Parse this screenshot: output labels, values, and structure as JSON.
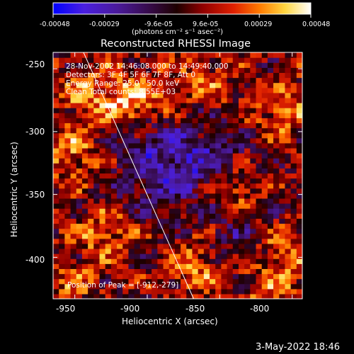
{
  "colorbar": {
    "ticks": [
      "-0.00048",
      "-0.00029",
      "-9.6e-05",
      "9.6e-05",
      "0.00029",
      "0.00048"
    ],
    "unit_label": "(photons cm⁻² s⁻¹ asec⁻²)"
  },
  "title": "Reconstructed RHESSI Image",
  "annotations": {
    "time_range": "28-Nov-2002 14:46:08.000 to 14:49:40.000",
    "detectors": "Detectors: 3F 4F 5F 6F 7F 8F, Att 0",
    "energy_range": "Energy Range: 25.0 - 50.0 keV",
    "clean_counts": "Clean    Total counts: 8.55E+03",
    "peak_position": "Position of Peak = [-912,-279]"
  },
  "footer": {
    "timestamp": "3-May-2022 18:46"
  },
  "chart_data": {
    "type": "heatmap",
    "title": "Reconstructed RHESSI Image",
    "xlabel": "Heliocentric X (arcsec)",
    "ylabel": "Heliocentric Y (arcsec)",
    "xlim": [
      -965,
      -793
    ],
    "ylim": [
      -433,
      -237
    ],
    "x_ticks": [
      -950,
      -900,
      -850,
      -800
    ],
    "y_ticks": [
      -250,
      -300,
      -350,
      -400
    ],
    "colorscale": {
      "min": -0.00048,
      "max": 0.00048,
      "unit": "photons cm^-2 s^-1 asec^-2",
      "stops": [
        "#0000ff",
        "#5a1fd0",
        "#3a0e55",
        "#6a0000",
        "#c81000",
        "#ff5a00",
        "#ffb020",
        "#fff36a",
        "#ffffff"
      ]
    },
    "limb_line": {
      "x1": -944,
      "y1": -237,
      "x2": -868,
      "y2": -433
    },
    "peak": {
      "x": -912,
      "y": -279
    }
  }
}
